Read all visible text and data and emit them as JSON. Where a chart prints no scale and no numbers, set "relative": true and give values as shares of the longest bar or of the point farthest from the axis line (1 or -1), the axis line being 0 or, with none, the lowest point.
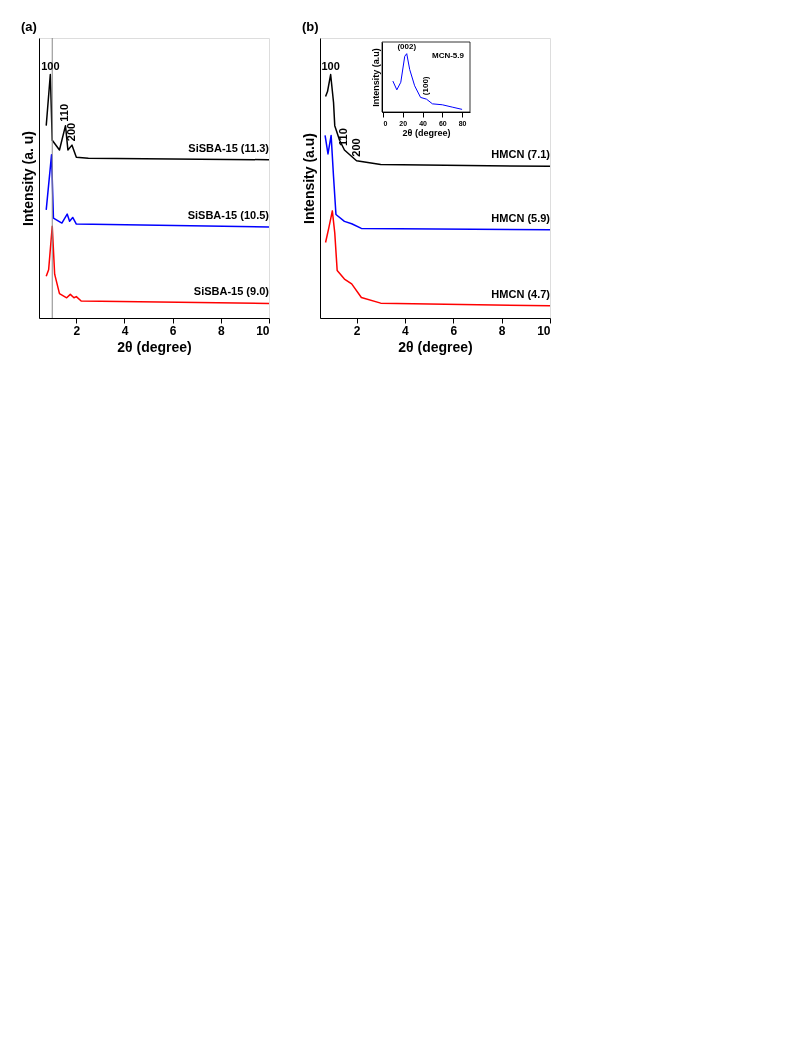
{
  "chart_data": [
    {
      "type": "line",
      "title": "(a)",
      "xlabel": "2θ (degree)",
      "ylabel": "Intensity (a. u)",
      "relative": true,
      "tick_labels": "x",
      "grid": false,
      "xlim": [
        0.45,
        10
      ],
      "xticks": [
        2,
        4,
        6,
        8,
        10
      ],
      "series": [
        {
          "name": "SiSBA-15 (11.3)",
          "color": "#000000",
          "x": [
            0.75,
            0.92,
            1.0,
            1.3,
            1.55,
            1.65,
            1.82,
            2.0,
            2.5,
            10
          ],
          "values": [
            0.79,
            1.0,
            0.73,
            0.69,
            0.79,
            0.69,
            0.71,
            0.66,
            0.656,
            0.65
          ]
        },
        {
          "name": "SiSBA-15 (10.5)",
          "color": "#0000ff",
          "x": [
            0.75,
            0.97,
            1.05,
            1.4,
            1.62,
            1.72,
            1.85,
            2.0,
            10
          ],
          "values": [
            0.444,
            0.67,
            0.41,
            0.39,
            0.427,
            0.397,
            0.413,
            0.386,
            0.374
          ]
        },
        {
          "name": "SiSBA-15 (9.0)",
          "color": "#ff0000",
          "x": [
            0.75,
            0.85,
            1.0,
            1.1,
            1.3,
            1.6,
            1.75,
            1.9,
            2.0,
            2.2,
            10
          ],
          "values": [
            0.171,
            0.198,
            0.377,
            0.18,
            0.1,
            0.083,
            0.097,
            0.083,
            0.088,
            0.07,
            0.06
          ]
        }
      ],
      "ref_lines": [
        {
          "axis": "x",
          "value": 1.0,
          "color": "#888888"
        }
      ],
      "annotations": [
        {
          "text": "100",
          "x": 0.92,
          "y": 1.0
        },
        {
          "text": "110",
          "x": 1.55,
          "y": 0.79
        },
        {
          "text": "200",
          "x": 1.82,
          "y": 0.71
        }
      ]
    },
    {
      "type": "line",
      "title": "(b)",
      "xlabel": "2θ (degree)",
      "ylabel": "Intensity (a.u)",
      "relative": true,
      "tick_labels": "x",
      "grid": false,
      "xlim": [
        0.49,
        10
      ],
      "xticks": [
        2,
        4,
        6,
        8,
        10
      ],
      "series": [
        {
          "name": "HMCN (7.1)",
          "color": "#000000",
          "x": [
            0.72,
            0.8,
            0.93,
            1.05,
            1.1,
            1.3,
            1.5,
            2.0,
            3.0,
            10
          ],
          "values": [
            0.91,
            0.93,
            1.0,
            0.885,
            0.79,
            0.73,
            0.69,
            0.646,
            0.63,
            0.623
          ]
        },
        {
          "name": "HMCN (5.9)",
          "color": "#0000ff",
          "x": [
            0.7,
            0.82,
            0.95,
            1.05,
            1.15,
            1.5,
            1.8,
            2.2,
            10
          ],
          "values": [
            0.75,
            0.674,
            0.75,
            0.58,
            0.425,
            0.397,
            0.387,
            0.368,
            0.362
          ]
        },
        {
          "name": "HMCN (4.7)",
          "color": "#ff0000",
          "x": [
            0.72,
            0.85,
            1.0,
            1.1,
            1.2,
            1.5,
            1.8,
            2.2,
            3.0,
            10
          ],
          "values": [
            0.31,
            0.368,
            0.44,
            0.35,
            0.195,
            0.16,
            0.14,
            0.084,
            0.061,
            0.05
          ]
        }
      ],
      "annotations": [
        {
          "text": "100",
          "x": 0.93,
          "y": 1.0
        },
        {
          "text": "110",
          "x": 1.5,
          "y": 0.69
        },
        {
          "text": "200",
          "x": 2.0,
          "y": 0.646
        }
      ]
    },
    {
      "type": "line",
      "xlabel": "2θ (degree)",
      "ylabel": "Intensity (a.u)",
      "relative": true,
      "tick_labels": "x",
      "grid": false,
      "xlim": [
        -1,
        88
      ],
      "xticks": [
        0,
        20,
        40,
        60,
        80
      ],
      "series": [
        {
          "color": "#0000ff",
          "x": [
            10,
            14,
            18,
            22,
            24,
            27,
            32,
            38,
            44,
            50,
            60,
            70,
            80
          ],
          "values": [
            0.53,
            0.38,
            0.51,
            0.955,
            1.0,
            0.73,
            0.45,
            0.25,
            0.22,
            0.14,
            0.124,
            0.084,
            0.045
          ]
        }
      ],
      "annotations": [
        {
          "text": "(002)",
          "x": 24,
          "y": 1.0
        },
        {
          "text": "(100)",
          "x": 44,
          "y": 0.22
        },
        "MCN-5.9"
      ]
    }
  ]
}
